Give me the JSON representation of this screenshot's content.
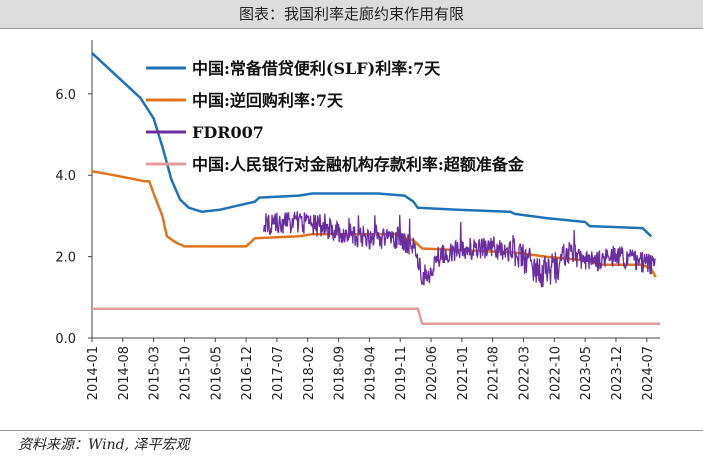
{
  "header": {
    "title": "图表：我国利率走廊约束作用有限"
  },
  "footer": {
    "source": "资料来源：Wind, 泽平宏观"
  },
  "chart_data": {
    "type": "line",
    "x_ticks": [
      "2014-01",
      "2014-08",
      "2015-03",
      "2015-10",
      "2016-05",
      "2016-12",
      "2017-07",
      "2018-02",
      "2018-09",
      "2019-04",
      "2019-11",
      "2020-06",
      "2021-01",
      "2021-08",
      "2022-03",
      "2022-10",
      "2023-05",
      "2023-12",
      "2024-07"
    ],
    "y_ticks": [
      "0.0",
      "2.0",
      "4.0",
      "6.0"
    ],
    "ylim": [
      0,
      7.2
    ],
    "xlim": [
      "2014-01",
      "2024-10"
    ],
    "legend_position": "top-left",
    "series": [
      {
        "name": "中国:常备借贷便利(SLF)利率:7天",
        "color": "#1f72b8",
        "points": [
          [
            "2014-01",
            7.0
          ],
          [
            "2014-04",
            6.7
          ],
          [
            "2014-08",
            6.3
          ],
          [
            "2014-12",
            5.9
          ],
          [
            "2015-03",
            5.4
          ],
          [
            "2015-05",
            4.7
          ],
          [
            "2015-07",
            3.9
          ],
          [
            "2015-09",
            3.4
          ],
          [
            "2015-11",
            3.2
          ],
          [
            "2016-02",
            3.1
          ],
          [
            "2016-06",
            3.15
          ],
          [
            "2016-10",
            3.25
          ],
          [
            "2017-02",
            3.35
          ],
          [
            "2017-03",
            3.45
          ],
          [
            "2017-12",
            3.5
          ],
          [
            "2018-03",
            3.55
          ],
          [
            "2019-06",
            3.55
          ],
          [
            "2019-12",
            3.5
          ],
          [
            "2020-02",
            3.35
          ],
          [
            "2020-03",
            3.2
          ],
          [
            "2020-12",
            3.15
          ],
          [
            "2021-12",
            3.1
          ],
          [
            "2022-01",
            3.05
          ],
          [
            "2022-08",
            2.95
          ],
          [
            "2023-05",
            2.85
          ],
          [
            "2023-06",
            2.75
          ],
          [
            "2024-06",
            2.7
          ],
          [
            "2024-08",
            2.5
          ]
        ]
      },
      {
        "name": "中国:逆回购利率:7天",
        "color": "#e0741e",
        "points": [
          [
            "2014-01",
            4.1
          ],
          [
            "2014-06",
            4.0
          ],
          [
            "2015-01",
            3.85
          ],
          [
            "2015-02",
            3.85
          ],
          [
            "2015-03",
            3.55
          ],
          [
            "2015-05",
            3.0
          ],
          [
            "2015-06",
            2.5
          ],
          [
            "2015-08",
            2.35
          ],
          [
            "2015-10",
            2.25
          ],
          [
            "2016-12",
            2.25
          ],
          [
            "2017-01",
            2.35
          ],
          [
            "2017-02",
            2.45
          ],
          [
            "2017-12",
            2.5
          ],
          [
            "2018-03",
            2.55
          ],
          [
            "2019-10",
            2.55
          ],
          [
            "2019-11",
            2.5
          ],
          [
            "2020-02",
            2.4
          ],
          [
            "2020-04",
            2.2
          ],
          [
            "2022-01",
            2.1
          ],
          [
            "2022-08",
            2.0
          ],
          [
            "2023-06",
            1.9
          ],
          [
            "2023-08",
            1.8
          ],
          [
            "2024-06",
            1.8
          ],
          [
            "2024-08",
            1.7
          ],
          [
            "2024-09",
            1.5
          ]
        ]
      },
      {
        "name": "FDR007",
        "color": "#6a2ea0",
        "start": "2017-04",
        "end": "2024-09",
        "noisy": true,
        "base": [
          [
            "2017-04",
            2.8
          ],
          [
            "2017-12",
            2.85
          ],
          [
            "2018-06",
            2.7
          ],
          [
            "2019-01",
            2.5
          ],
          [
            "2019-06",
            2.45
          ],
          [
            "2019-11",
            2.45
          ],
          [
            "2020-02",
            2.2
          ],
          [
            "2020-04",
            1.5
          ],
          [
            "2020-06",
            1.6
          ],
          [
            "2020-09",
            2.1
          ],
          [
            "2021-01",
            2.2
          ],
          [
            "2021-06",
            2.2
          ],
          [
            "2022-01",
            2.15
          ],
          [
            "2022-03",
            1.9
          ],
          [
            "2022-06",
            1.6
          ],
          [
            "2022-10",
            1.7
          ],
          [
            "2023-01",
            2.1
          ],
          [
            "2023-06",
            1.85
          ],
          [
            "2023-12",
            2.0
          ],
          [
            "2024-06",
            1.85
          ],
          [
            "2024-09",
            1.75
          ]
        ]
      },
      {
        "name": "中国:人民银行对金融机构存款利率:超额准备金",
        "color": "#e39c9c",
        "points": [
          [
            "2014-01",
            0.72
          ],
          [
            "2020-03",
            0.72
          ],
          [
            "2020-04",
            0.35
          ],
          [
            "2024-10",
            0.35
          ]
        ]
      }
    ]
  }
}
